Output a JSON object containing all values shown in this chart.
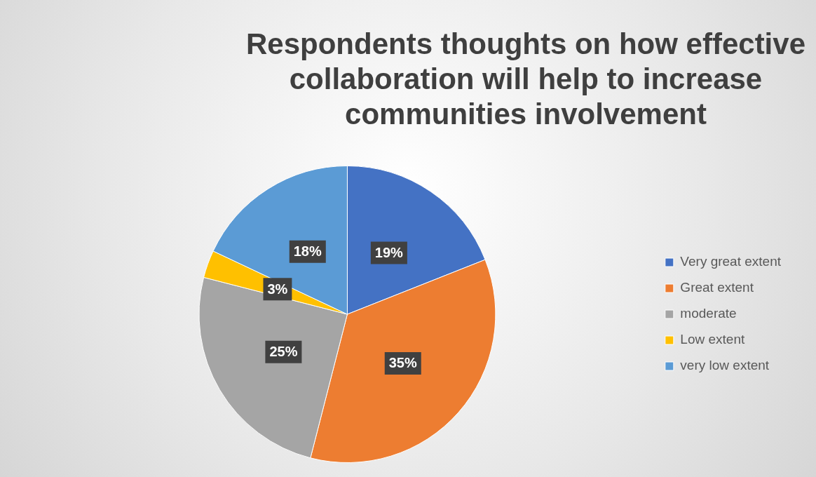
{
  "chart_data": {
    "type": "pie",
    "title": "Respondents thoughts on how effective collaboration will help to increase communities involvement",
    "categories": [
      "Very great extent",
      "Great extent",
      "moderate",
      "Low extent",
      "very low extent"
    ],
    "values": [
      19,
      35,
      25,
      3,
      18
    ],
    "colors": [
      "#4472c4",
      "#ed7d31",
      "#a5a5a5",
      "#ffc000",
      "#5b9bd5"
    ],
    "value_labels": [
      "19%",
      "35%",
      "25%",
      "3%",
      "18%"
    ],
    "legend": "right"
  }
}
